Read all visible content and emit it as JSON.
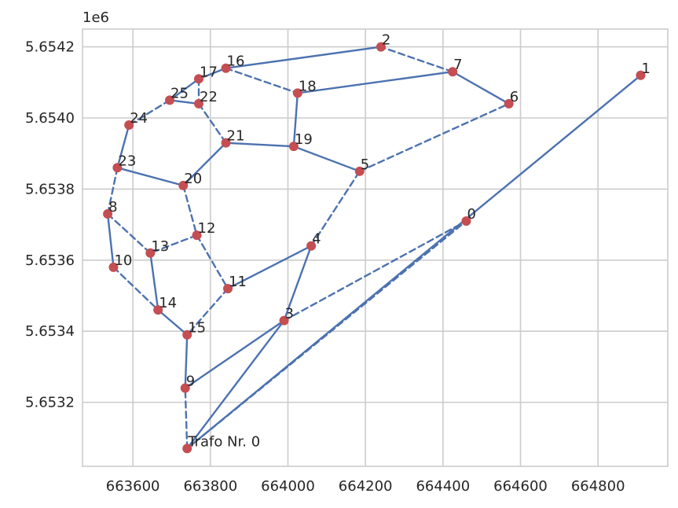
{
  "chart_data": {
    "type": "network",
    "offset_label": "1e6",
    "xlim": [
      663470,
      664980
    ],
    "ylim": [
      5.65302,
      5.65425
    ],
    "x_ticks": [
      663600,
      663800,
      664000,
      664200,
      664400,
      664600,
      664800
    ],
    "x_tick_labels": [
      "663600",
      "663800",
      "664000",
      "664200",
      "664400",
      "664600",
      "664800"
    ],
    "y_ticks": [
      5.6532,
      5.6534,
      5.6536,
      5.6538,
      5.654,
      5.6542
    ],
    "y_tick_labels": [
      "5.6532",
      "5.6534",
      "5.6536",
      "5.6538",
      "5.6540",
      "5.6542"
    ],
    "grid": true,
    "colors": {
      "edge": "#4c72b0",
      "node": "#c44e52",
      "grid": "#cccccc",
      "text": "#262626"
    },
    "nodes": [
      {
        "id": "0",
        "label": "0",
        "x": 664460,
        "y": 5.65371
      },
      {
        "id": "1",
        "label": "1",
        "x": 664910,
        "y": 5.65412
      },
      {
        "id": "2",
        "label": "2",
        "x": 664240,
        "y": 5.6542
      },
      {
        "id": "3",
        "label": "3",
        "x": 663990,
        "y": 5.65343
      },
      {
        "id": "4",
        "label": "4",
        "x": 664060,
        "y": 5.65364
      },
      {
        "id": "5",
        "label": "5",
        "x": 664185,
        "y": 5.65385
      },
      {
        "id": "6",
        "label": "6",
        "x": 664570,
        "y": 5.65404
      },
      {
        "id": "7",
        "label": "7",
        "x": 664425,
        "y": 5.65413
      },
      {
        "id": "8",
        "label": "8",
        "x": 663535,
        "y": 5.65373
      },
      {
        "id": "9",
        "label": "9",
        "x": 663735,
        "y": 5.65324
      },
      {
        "id": "10",
        "label": "10",
        "x": 663550,
        "y": 5.65358
      },
      {
        "id": "11",
        "label": "11",
        "x": 663845,
        "y": 5.65352
      },
      {
        "id": "12",
        "label": "12",
        "x": 663765,
        "y": 5.65367
      },
      {
        "id": "13",
        "label": "13",
        "x": 663645,
        "y": 5.65362
      },
      {
        "id": "14",
        "label": "14",
        "x": 663665,
        "y": 5.65346
      },
      {
        "id": "15",
        "label": "15",
        "x": 663740,
        "y": 5.65339
      },
      {
        "id": "16",
        "label": "16",
        "x": 663840,
        "y": 5.65414
      },
      {
        "id": "17",
        "label": "17",
        "x": 663770,
        "y": 5.65411
      },
      {
        "id": "18",
        "label": "18",
        "x": 664025,
        "y": 5.65407
      },
      {
        "id": "19",
        "label": "19",
        "x": 664015,
        "y": 5.65392
      },
      {
        "id": "20",
        "label": "20",
        "x": 663730,
        "y": 5.65381
      },
      {
        "id": "21",
        "label": "21",
        "x": 663840,
        "y": 5.65393
      },
      {
        "id": "22",
        "label": "22",
        "x": 663770,
        "y": 5.65404
      },
      {
        "id": "23",
        "label": "23",
        "x": 663560,
        "y": 5.65386
      },
      {
        "id": "24",
        "label": "24",
        "x": 663590,
        "y": 5.65398
      },
      {
        "id": "25",
        "label": "25",
        "x": 663695,
        "y": 5.65405
      },
      {
        "id": "T",
        "label": "Trafo Nr. 0",
        "x": 663740,
        "y": 5.65307
      }
    ],
    "edges": [
      {
        "from": "T",
        "to": "9",
        "dashed": true
      },
      {
        "from": "T",
        "to": "3",
        "dashed": false
      },
      {
        "from": "T",
        "to": "1",
        "dashed": false
      },
      {
        "from": "T",
        "to": "0",
        "dashed": true
      },
      {
        "from": "9",
        "to": "15",
        "dashed": false
      },
      {
        "from": "9",
        "to": "3",
        "dashed": false
      },
      {
        "from": "3",
        "to": "4",
        "dashed": false
      },
      {
        "from": "3",
        "to": "0",
        "dashed": true
      },
      {
        "from": "4",
        "to": "11",
        "dashed": false
      },
      {
        "from": "4",
        "to": "5",
        "dashed": true
      },
      {
        "from": "5",
        "to": "19",
        "dashed": false
      },
      {
        "from": "5",
        "to": "6",
        "dashed": true
      },
      {
        "from": "6",
        "to": "7",
        "dashed": false
      },
      {
        "from": "7",
        "to": "2",
        "dashed": true
      },
      {
        "from": "7",
        "to": "18",
        "dashed": false
      },
      {
        "from": "2",
        "to": "16",
        "dashed": false
      },
      {
        "from": "16",
        "to": "18",
        "dashed": true
      },
      {
        "from": "16",
        "to": "17",
        "dashed": false
      },
      {
        "from": "17",
        "to": "25",
        "dashed": false
      },
      {
        "from": "17",
        "to": "22",
        "dashed": true
      },
      {
        "from": "25",
        "to": "24",
        "dashed": true
      },
      {
        "from": "25",
        "to": "22",
        "dashed": false
      },
      {
        "from": "22",
        "to": "21",
        "dashed": true
      },
      {
        "from": "21",
        "to": "19",
        "dashed": false
      },
      {
        "from": "21",
        "to": "20",
        "dashed": false
      },
      {
        "from": "18",
        "to": "19",
        "dashed": false
      },
      {
        "from": "24",
        "to": "23",
        "dashed": false
      },
      {
        "from": "23",
        "to": "20",
        "dashed": false
      },
      {
        "from": "23",
        "to": "8",
        "dashed": true
      },
      {
        "from": "20",
        "to": "12",
        "dashed": true
      },
      {
        "from": "12",
        "to": "13",
        "dashed": true
      },
      {
        "from": "12",
        "to": "11",
        "dashed": true
      },
      {
        "from": "11",
        "to": "15",
        "dashed": true
      },
      {
        "from": "8",
        "to": "13",
        "dashed": true
      },
      {
        "from": "8",
        "to": "10",
        "dashed": false
      },
      {
        "from": "13",
        "to": "14",
        "dashed": false
      },
      {
        "from": "10",
        "to": "14",
        "dashed": true
      },
      {
        "from": "14",
        "to": "15",
        "dashed": false
      }
    ]
  }
}
